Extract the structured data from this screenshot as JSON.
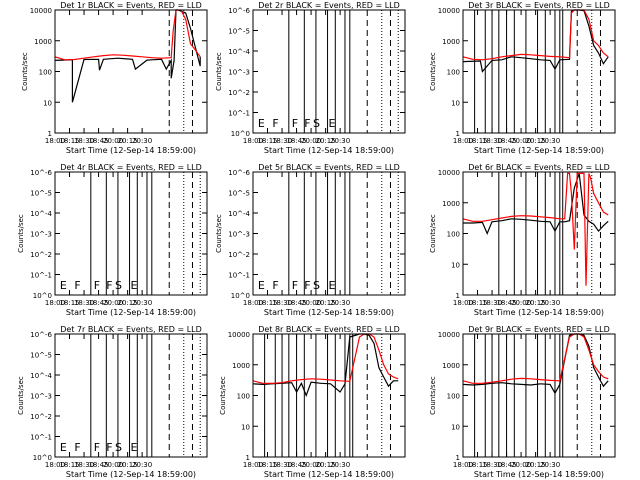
{
  "figure": {
    "x_ticks": [
      "18:00",
      "18:15",
      "18:30",
      "18:45",
      "20:00",
      "20:15",
      "20:30"
    ],
    "x_label": "Start Time (12-Sep-14 18:59:00)",
    "y_label": "Counts/sec",
    "colors": {
      "events": "#000000",
      "lld": "#ff0000"
    }
  },
  "chart_data": [
    {
      "type": "line",
      "title": "Det 1r  BLACK = Events, RED = LLD",
      "y_scale": "log",
      "y_ticks": [
        "1",
        "10",
        "100",
        "1000",
        "10000"
      ],
      "flags": [],
      "series": [
        {
          "color": "#000000",
          "x": [
            0,
            18,
            18,
            30,
            45,
            46,
            50,
            65,
            80,
            83,
            95,
            100,
            110,
            115,
            120,
            120,
            123,
            125,
            127,
            128,
            135,
            140,
            150,
            150
          ],
          "y": [
            230,
            240,
            10,
            245,
            250,
            110,
            250,
            270,
            250,
            120,
            235,
            240,
            250,
            120,
            230,
            60,
            230,
            10000,
            10000,
            9800,
            8000,
            2500,
            150,
            300
          ]
        },
        {
          "color": "#ff0000",
          "x": [
            0,
            10,
            20,
            30,
            40,
            50,
            60,
            70,
            80,
            90,
            100,
            110,
            120,
            122,
            125,
            127,
            130,
            135,
            140,
            145,
            150
          ],
          "y": [
            300,
            240,
            245,
            270,
            300,
            330,
            350,
            340,
            320,
            300,
            280,
            270,
            280,
            2000,
            10000,
            10000,
            10000,
            5000,
            800,
            500,
            300
          ]
        }
      ],
      "vlines": [
        {
          "x": 118,
          "s": "dash"
        },
        {
          "x": 133,
          "s": "dot"
        },
        {
          "x": 142,
          "s": "dash"
        }
      ]
    },
    {
      "type": "line",
      "title": "Det 2r  BLACK = Events, RED = LLD",
      "y_scale": "log",
      "y_ticks": [
        "10^0",
        "10^-1",
        "10^-2",
        "10^-3",
        "10^-4",
        "10^-5",
        "10^-6"
      ],
      "flags": [
        "E",
        "F",
        "F",
        "F",
        "S",
        "E"
      ],
      "series": [],
      "vlines": [
        {
          "x": 37,
          "s": "solid"
        },
        {
          "x": 53,
          "s": "solid"
        },
        {
          "x": 65,
          "s": "solid"
        },
        {
          "x": 77,
          "s": "solid"
        },
        {
          "x": 85,
          "s": "solid"
        },
        {
          "x": 95,
          "s": "solid"
        },
        {
          "x": 100,
          "s": "solid"
        },
        {
          "x": 118,
          "s": "dash"
        },
        {
          "x": 133,
          "s": "dot"
        },
        {
          "x": 142,
          "s": "dash"
        },
        {
          "x": 150,
          "s": "dot"
        }
      ]
    },
    {
      "type": "line",
      "title": "Det 3r  BLACK = Events, RED = LLD",
      "y_scale": "log",
      "y_ticks": [
        "1",
        "10",
        "100",
        "1000",
        "10000"
      ],
      "flags": [],
      "series": [
        {
          "color": "#000000",
          "x": [
            0,
            18,
            20,
            30,
            40,
            50,
            60,
            70,
            80,
            90,
            95,
            100,
            110,
            112,
            115,
            120,
            125,
            130,
            135,
            140,
            145,
            150
          ],
          "y": [
            210,
            220,
            100,
            230,
            240,
            300,
            280,
            260,
            240,
            230,
            120,
            240,
            250,
            9000,
            10000,
            10000,
            9500,
            3000,
            700,
            400,
            180,
            300
          ]
        },
        {
          "color": "#ff0000",
          "x": [
            0,
            10,
            20,
            30,
            40,
            50,
            60,
            70,
            80,
            90,
            100,
            110,
            112,
            115,
            120,
            125,
            130,
            135,
            140,
            145,
            150
          ],
          "y": [
            300,
            250,
            240,
            260,
            300,
            330,
            360,
            350,
            330,
            310,
            300,
            280,
            8000,
            10000,
            10000,
            10000,
            5000,
            1000,
            700,
            400,
            300
          ]
        }
      ],
      "vlines": [
        {
          "x": 12,
          "s": "solid"
        },
        {
          "x": 23,
          "s": "solid"
        },
        {
          "x": 30,
          "s": "solid"
        },
        {
          "x": 37,
          "s": "solid"
        },
        {
          "x": 45,
          "s": "solid"
        },
        {
          "x": 53,
          "s": "solid"
        },
        {
          "x": 65,
          "s": "solid"
        },
        {
          "x": 77,
          "s": "solid"
        },
        {
          "x": 85,
          "s": "solid"
        },
        {
          "x": 95,
          "s": "solid"
        },
        {
          "x": 100,
          "s": "solid"
        },
        {
          "x": 103,
          "s": "solid"
        },
        {
          "x": 118,
          "s": "dash"
        },
        {
          "x": 133,
          "s": "dot"
        },
        {
          "x": 142,
          "s": "dash"
        }
      ]
    },
    {
      "type": "line",
      "title": "Det 4r  BLACK = Events, RED = LLD",
      "y_scale": "log",
      "y_ticks": [
        "10^0",
        "10^-1",
        "10^-2",
        "10^-3",
        "10^-4",
        "10^-5",
        "10^-6"
      ],
      "flags": [
        "E",
        "F",
        "F",
        "F",
        "S",
        "E"
      ],
      "series": [],
      "vlines": [
        {
          "x": 37,
          "s": "solid"
        },
        {
          "x": 53,
          "s": "solid"
        },
        {
          "x": 65,
          "s": "solid"
        },
        {
          "x": 77,
          "s": "solid"
        },
        {
          "x": 85,
          "s": "solid"
        },
        {
          "x": 95,
          "s": "solid"
        },
        {
          "x": 100,
          "s": "solid"
        },
        {
          "x": 118,
          "s": "dash"
        },
        {
          "x": 133,
          "s": "dot"
        },
        {
          "x": 142,
          "s": "dash"
        },
        {
          "x": 150,
          "s": "dot"
        }
      ]
    },
    {
      "type": "line",
      "title": "Det 5r  BLACK = Events, RED = LLD",
      "y_scale": "log",
      "y_ticks": [
        "10^0",
        "10^-1",
        "10^-2",
        "10^-3",
        "10^-4",
        "10^-5",
        "10^-6"
      ],
      "flags": [
        "E",
        "F",
        "F",
        "F",
        "S",
        "E"
      ],
      "series": [],
      "vlines": [
        {
          "x": 37,
          "s": "solid"
        },
        {
          "x": 53,
          "s": "solid"
        },
        {
          "x": 65,
          "s": "solid"
        },
        {
          "x": 77,
          "s": "solid"
        },
        {
          "x": 85,
          "s": "solid"
        },
        {
          "x": 95,
          "s": "solid"
        },
        {
          "x": 100,
          "s": "solid"
        },
        {
          "x": 118,
          "s": "dash"
        },
        {
          "x": 133,
          "s": "dot"
        },
        {
          "x": 142,
          "s": "dash"
        },
        {
          "x": 150,
          "s": "dot"
        }
      ]
    },
    {
      "type": "line",
      "title": "Det 6r  BLACK = Events, RED = LLD",
      "y_scale": "log",
      "y_ticks": [
        "1",
        "10",
        "100",
        "1000",
        "10000"
      ],
      "flags": [],
      "series": [
        {
          "color": "#000000",
          "x": [
            0,
            10,
            20,
            25,
            30,
            40,
            50,
            60,
            70,
            80,
            90,
            95,
            100,
            105,
            110,
            115,
            120,
            125,
            130,
            135,
            140,
            145,
            150
          ],
          "y": [
            220,
            220,
            230,
            100,
            240,
            260,
            300,
            290,
            270,
            250,
            240,
            120,
            240,
            240,
            260,
            3000,
            9000,
            400,
            250,
            200,
            120,
            180,
            250
          ]
        },
        {
          "color": "#ff0000",
          "x": [
            0,
            10,
            20,
            30,
            40,
            50,
            60,
            70,
            80,
            90,
            100,
            105,
            108,
            110,
            112,
            115,
            118,
            120,
            125,
            127,
            130,
            132,
            135,
            140,
            145,
            150
          ],
          "y": [
            300,
            250,
            250,
            280,
            320,
            360,
            380,
            370,
            350,
            330,
            300,
            300,
            9000,
            9000,
            2000,
            30,
            9000,
            9000,
            9000,
            2,
            9000,
            6000,
            2000,
            1000,
            500,
            400
          ]
        }
      ],
      "vlines": [
        {
          "x": 37,
          "s": "solid"
        },
        {
          "x": 53,
          "s": "solid"
        },
        {
          "x": 65,
          "s": "solid"
        },
        {
          "x": 77,
          "s": "solid"
        },
        {
          "x": 85,
          "s": "solid"
        },
        {
          "x": 95,
          "s": "solid"
        },
        {
          "x": 100,
          "s": "solid"
        },
        {
          "x": 103,
          "s": "solid"
        },
        {
          "x": 118,
          "s": "dash"
        },
        {
          "x": 133,
          "s": "dot"
        },
        {
          "x": 142,
          "s": "dash"
        }
      ]
    },
    {
      "type": "line",
      "title": "Det 7r  BLACK = Events, RED = LLD",
      "y_scale": "log",
      "y_ticks": [
        "10^0",
        "10^-1",
        "10^-2",
        "10^-3",
        "10^-4",
        "10^-5",
        "10^-6"
      ],
      "flags": [
        "E",
        "F",
        "F",
        "F",
        "S",
        "E"
      ],
      "series": [],
      "vlines": [
        {
          "x": 37,
          "s": "solid"
        },
        {
          "x": 53,
          "s": "solid"
        },
        {
          "x": 65,
          "s": "solid"
        },
        {
          "x": 77,
          "s": "solid"
        },
        {
          "x": 85,
          "s": "solid"
        },
        {
          "x": 95,
          "s": "solid"
        },
        {
          "x": 100,
          "s": "solid"
        },
        {
          "x": 118,
          "s": "dash"
        },
        {
          "x": 133,
          "s": "dot"
        },
        {
          "x": 142,
          "s": "dash"
        },
        {
          "x": 150,
          "s": "dot"
        }
      ]
    },
    {
      "type": "line",
      "title": "Det 8r  BLACK = Events, RED = LLD",
      "y_scale": "log",
      "y_ticks": [
        "1",
        "10",
        "100",
        "1000",
        "10000"
      ],
      "flags": [],
      "series": [
        {
          "color": "#000000",
          "x": [
            0,
            10,
            20,
            30,
            40,
            45,
            50,
            55,
            60,
            70,
            80,
            90,
            95,
            100,
            110,
            115,
            120,
            125,
            130,
            135,
            140,
            145,
            150
          ],
          "y": [
            240,
            230,
            240,
            250,
            260,
            130,
            250,
            100,
            270,
            250,
            240,
            130,
            240,
            8000,
            10000,
            10000,
            9000,
            5000,
            800,
            400,
            200,
            300,
            300
          ]
        },
        {
          "color": "#ff0000",
          "x": [
            0,
            10,
            20,
            30,
            40,
            50,
            60,
            70,
            80,
            90,
            100,
            110,
            115,
            120,
            125,
            130,
            135,
            140,
            145,
            150
          ],
          "y": [
            300,
            250,
            250,
            260,
            300,
            330,
            350,
            340,
            320,
            300,
            290,
            8000,
            10000,
            10000,
            8000,
            3000,
            1000,
            500,
            400,
            350
          ]
        }
      ],
      "vlines": [
        {
          "x": 12,
          "s": "solid"
        },
        {
          "x": 23,
          "s": "solid"
        },
        {
          "x": 30,
          "s": "solid"
        },
        {
          "x": 37,
          "s": "solid"
        },
        {
          "x": 45,
          "s": "solid"
        },
        {
          "x": 53,
          "s": "solid"
        },
        {
          "x": 65,
          "s": "solid"
        },
        {
          "x": 77,
          "s": "solid"
        },
        {
          "x": 85,
          "s": "solid"
        },
        {
          "x": 95,
          "s": "solid"
        },
        {
          "x": 100,
          "s": "solid"
        },
        {
          "x": 103,
          "s": "solid"
        },
        {
          "x": 118,
          "s": "dash"
        },
        {
          "x": 133,
          "s": "dot"
        },
        {
          "x": 142,
          "s": "dash"
        }
      ]
    },
    {
      "type": "line",
      "title": "Det 9r  BLACK = Events, RED = LLD",
      "y_scale": "log",
      "y_ticks": [
        "1",
        "10",
        "100",
        "1000",
        "10000"
      ],
      "flags": [],
      "series": [
        {
          "color": "#000000",
          "x": [
            0,
            10,
            20,
            30,
            40,
            50,
            60,
            70,
            80,
            90,
            95,
            100,
            110,
            115,
            120,
            125,
            130,
            135,
            140,
            145,
            150
          ],
          "y": [
            230,
            220,
            230,
            250,
            260,
            240,
            230,
            220,
            240,
            230,
            120,
            230,
            9000,
            10000,
            10000,
            9000,
            4000,
            800,
            400,
            200,
            300
          ]
        },
        {
          "color": "#ff0000",
          "x": [
            0,
            10,
            20,
            30,
            40,
            50,
            60,
            70,
            80,
            90,
            100,
            110,
            115,
            120,
            125,
            130,
            135,
            140,
            145,
            150
          ],
          "y": [
            300,
            250,
            250,
            270,
            300,
            340,
            360,
            350,
            330,
            310,
            300,
            8000,
            10000,
            10000,
            8000,
            3000,
            1000,
            600,
            400,
            350
          ]
        }
      ],
      "vlines": [
        {
          "x": 12,
          "s": "solid"
        },
        {
          "x": 23,
          "s": "solid"
        },
        {
          "x": 30,
          "s": "solid"
        },
        {
          "x": 37,
          "s": "solid"
        },
        {
          "x": 45,
          "s": "solid"
        },
        {
          "x": 53,
          "s": "solid"
        },
        {
          "x": 65,
          "s": "solid"
        },
        {
          "x": 77,
          "s": "solid"
        },
        {
          "x": 85,
          "s": "solid"
        },
        {
          "x": 95,
          "s": "solid"
        },
        {
          "x": 100,
          "s": "solid"
        },
        {
          "x": 103,
          "s": "solid"
        },
        {
          "x": 118,
          "s": "dash"
        },
        {
          "x": 133,
          "s": "dot"
        },
        {
          "x": 142,
          "s": "dash"
        }
      ]
    }
  ]
}
